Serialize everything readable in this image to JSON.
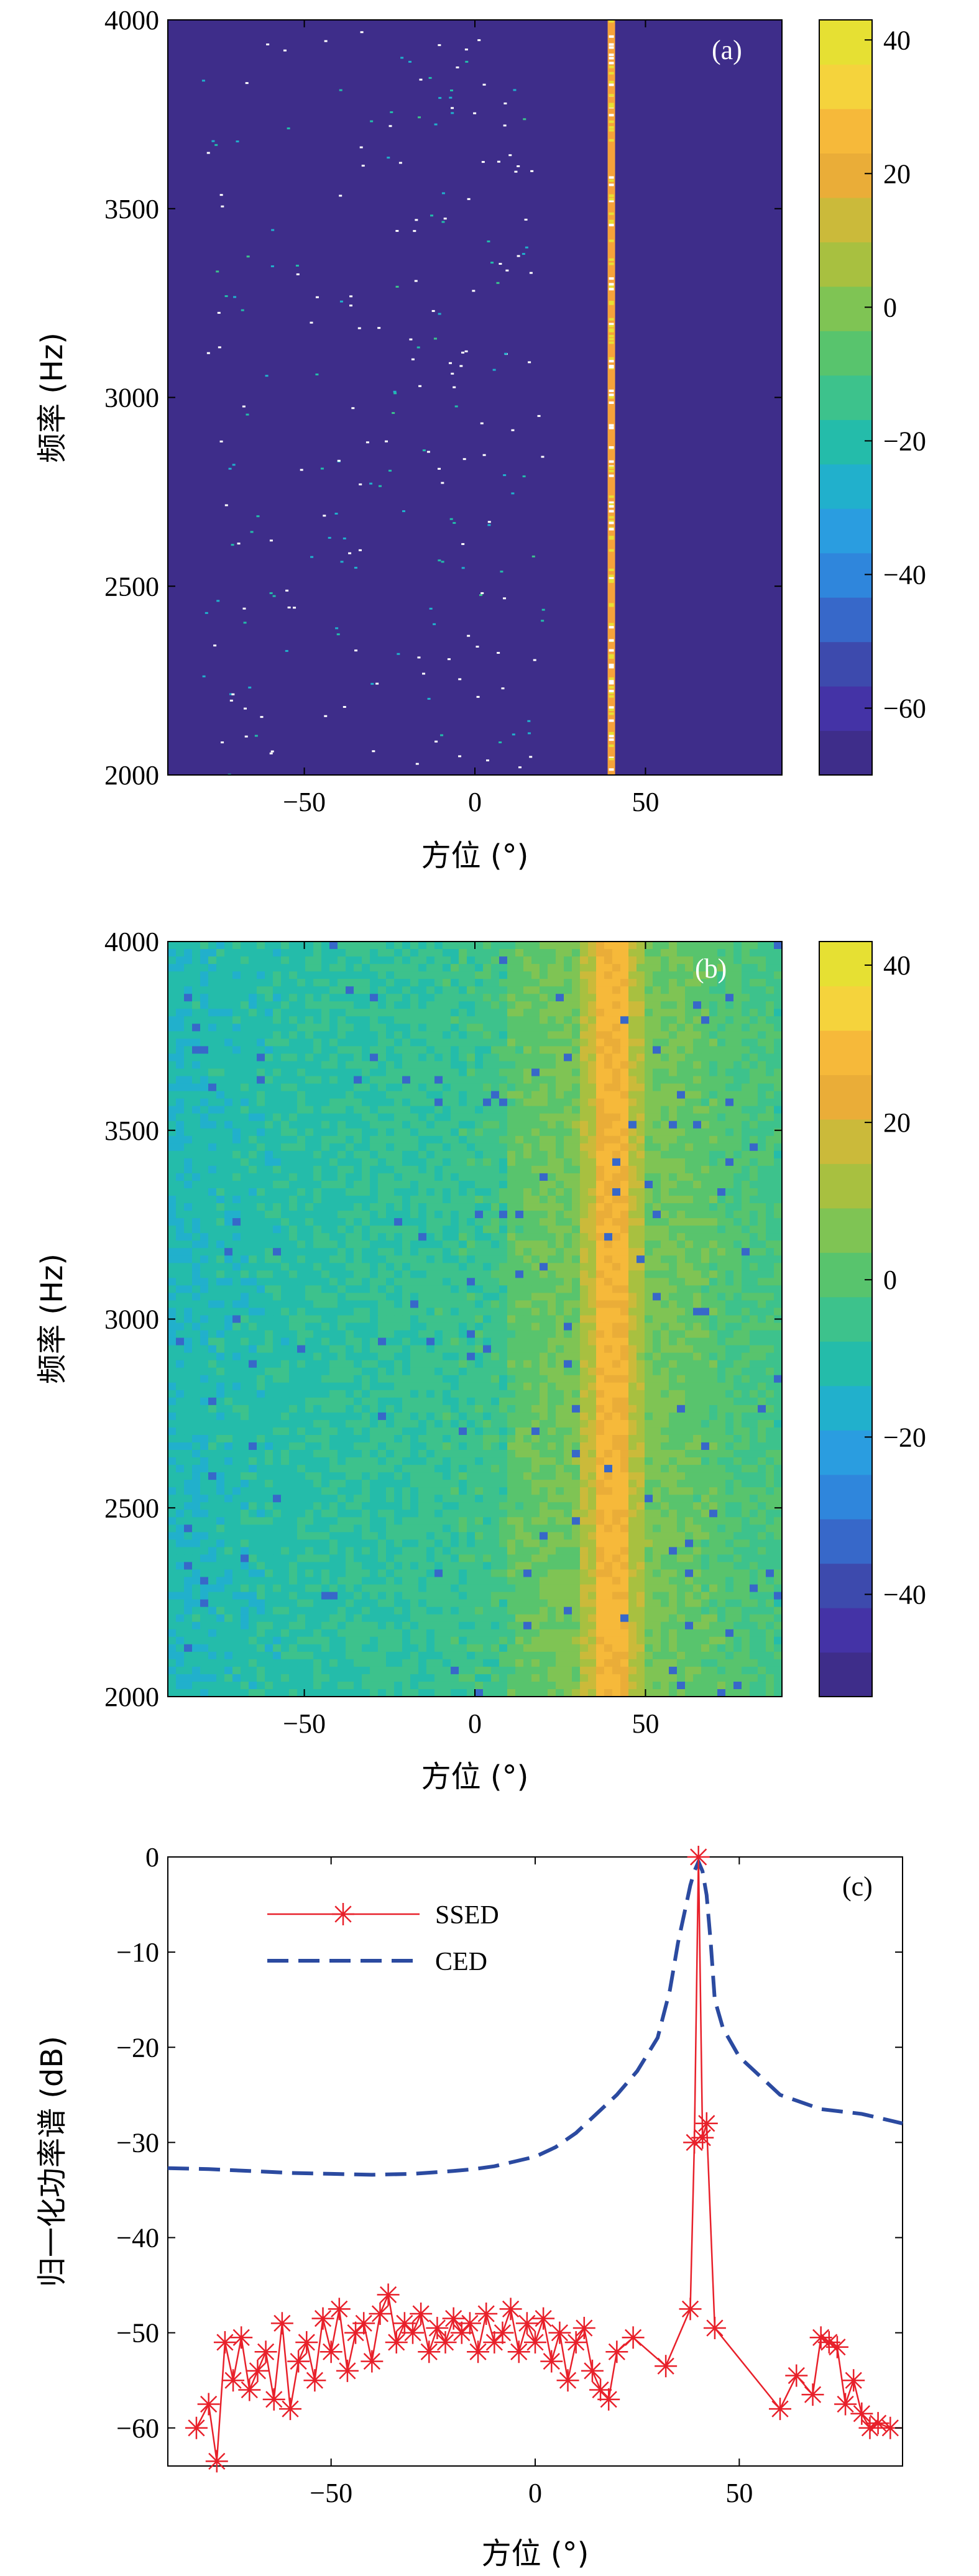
{
  "chart_data": [
    {
      "type": "heatmap",
      "panel_label": "(a)",
      "xlabel": "方位 (°)",
      "ylabel": "频率 (Hz)",
      "xlim": [
        -90,
        90
      ],
      "ylim": [
        2000,
        4000
      ],
      "x_ticks": [
        -50,
        0,
        50
      ],
      "y_ticks": [
        2000,
        2500,
        3000,
        3500,
        4000
      ],
      "colorbar": {
        "range": [
          -70,
          43
        ],
        "ticks": [
          -60,
          -40,
          -20,
          0,
          20,
          40
        ]
      },
      "background_level_db": -68,
      "ridge": {
        "azimuth_deg": 40,
        "level_db": 28
      },
      "scatter_levels_db": [
        -30,
        -15
      ],
      "colors": [
        "#3e2d8a",
        "#3f4fa5",
        "#3a86cc",
        "#27b0b4",
        "#57bf78",
        "#a8c040",
        "#f5a632",
        "#e6e033"
      ]
    },
    {
      "type": "heatmap",
      "panel_label": "(b)",
      "xlabel": "方位 (°)",
      "ylabel": "频率 (Hz)",
      "xlim": [
        -90,
        90
      ],
      "ylim": [
        2000,
        4000
      ],
      "x_ticks": [
        -50,
        0,
        50
      ],
      "y_ticks": [
        2000,
        2500,
        3000,
        3500,
        4000
      ],
      "colorbar": {
        "range": [
          -53,
          43
        ],
        "ticks": [
          -40,
          -20,
          0,
          20,
          40
        ]
      },
      "ridge": {
        "azimuth_deg": 40,
        "level_db": 27
      },
      "colors": [
        "#3e2d8a",
        "#3f4fa5",
        "#3a86cc",
        "#27b0b4",
        "#57bf78",
        "#a8c040",
        "#f5a632",
        "#e6e033"
      ]
    },
    {
      "type": "line",
      "panel_label": "(c)",
      "xlabel": "方位 (°)",
      "ylabel": "归一化功率谱 (dB)",
      "xlim": [
        -90,
        90
      ],
      "ylim": [
        -64,
        0
      ],
      "x_ticks": [
        -50,
        0,
        50
      ],
      "y_ticks": [
        0,
        -10,
        -20,
        -30,
        -40,
        -50,
        -60
      ],
      "legend": "top-left",
      "series": [
        {
          "name": "SSED",
          "color": "#e8202a",
          "style": "solid-star",
          "x": [
            -83,
            -80,
            -78,
            -76,
            -74,
            -72,
            -70,
            -68,
            -66,
            -64,
            -62,
            -60,
            -58,
            -56,
            -54,
            -52,
            -50,
            -48,
            -46,
            -44,
            -42,
            -40,
            -38,
            -36,
            -34,
            -32,
            -30,
            -28,
            -26,
            -24,
            -22,
            -20,
            -18,
            -16,
            -14,
            -12,
            -10,
            -8,
            -6,
            -4,
            -2,
            0,
            2,
            4,
            6,
            8,
            10,
            12,
            14,
            16,
            18,
            20,
            24,
            32,
            38,
            39,
            40,
            41,
            42,
            44,
            60,
            64,
            68,
            70,
            72,
            74,
            76,
            78,
            80,
            82,
            84,
            87
          ],
          "y": [
            -60,
            -57.5,
            -63.5,
            -51,
            -55,
            -50.5,
            -56,
            -54,
            -52,
            -57,
            -49,
            -58,
            -53,
            -51,
            -55,
            -48.5,
            -52,
            -47.5,
            -54,
            -50,
            -49,
            -53,
            -48,
            -46,
            -51,
            -49,
            -50,
            -48,
            -52,
            -49.5,
            -51,
            -48.5,
            -50,
            -49,
            -52,
            -48,
            -51,
            -50,
            -47.5,
            -52,
            -49,
            -51,
            -48.5,
            -53,
            -50,
            -55,
            -51,
            -49.5,
            -54,
            -56,
            -57,
            -52,
            -50.5,
            -53.5,
            -47.5,
            -30,
            0,
            -29.5,
            -28,
            -49.5,
            -58,
            -54.5,
            -56.5,
            -50.5,
            -51,
            -51.5,
            -57.5,
            -55,
            -58.5,
            -60,
            -59.5,
            -60
          ]
        },
        {
          "name": "CED",
          "color": "#2b4aa0",
          "style": "dashed",
          "x": [
            -90,
            -80,
            -70,
            -60,
            -50,
            -40,
            -30,
            -20,
            -15,
            -10,
            -5,
            0,
            5,
            10,
            15,
            20,
            25,
            30,
            33,
            35,
            37,
            38,
            39,
            40,
            41,
            42,
            43,
            44,
            46,
            50,
            55,
            60,
            70,
            80,
            90
          ],
          "y": [
            -32.7,
            -32.8,
            -33,
            -33.2,
            -33.3,
            -33.4,
            -33.3,
            -33,
            -32.8,
            -32.5,
            -32,
            -31.5,
            -30.5,
            -29,
            -27,
            -25,
            -22.5,
            -19,
            -14,
            -9,
            -5,
            -3,
            -1.5,
            -0.5,
            -1.5,
            -4,
            -9,
            -15,
            -18,
            -21,
            -23,
            -25,
            -26.5,
            -27,
            -28
          ]
        }
      ]
    }
  ],
  "colormap": [
    "#3e2d8a",
    "#4433a6",
    "#3d4aad",
    "#3768c9",
    "#2f86dc",
    "#2a9de0",
    "#21b0cc",
    "#24bcaa",
    "#3dc28c",
    "#58c46d",
    "#7fc454",
    "#a8c040",
    "#cbba3a",
    "#eaad38",
    "#f6b93a",
    "#f5d33c",
    "#e6e033"
  ]
}
